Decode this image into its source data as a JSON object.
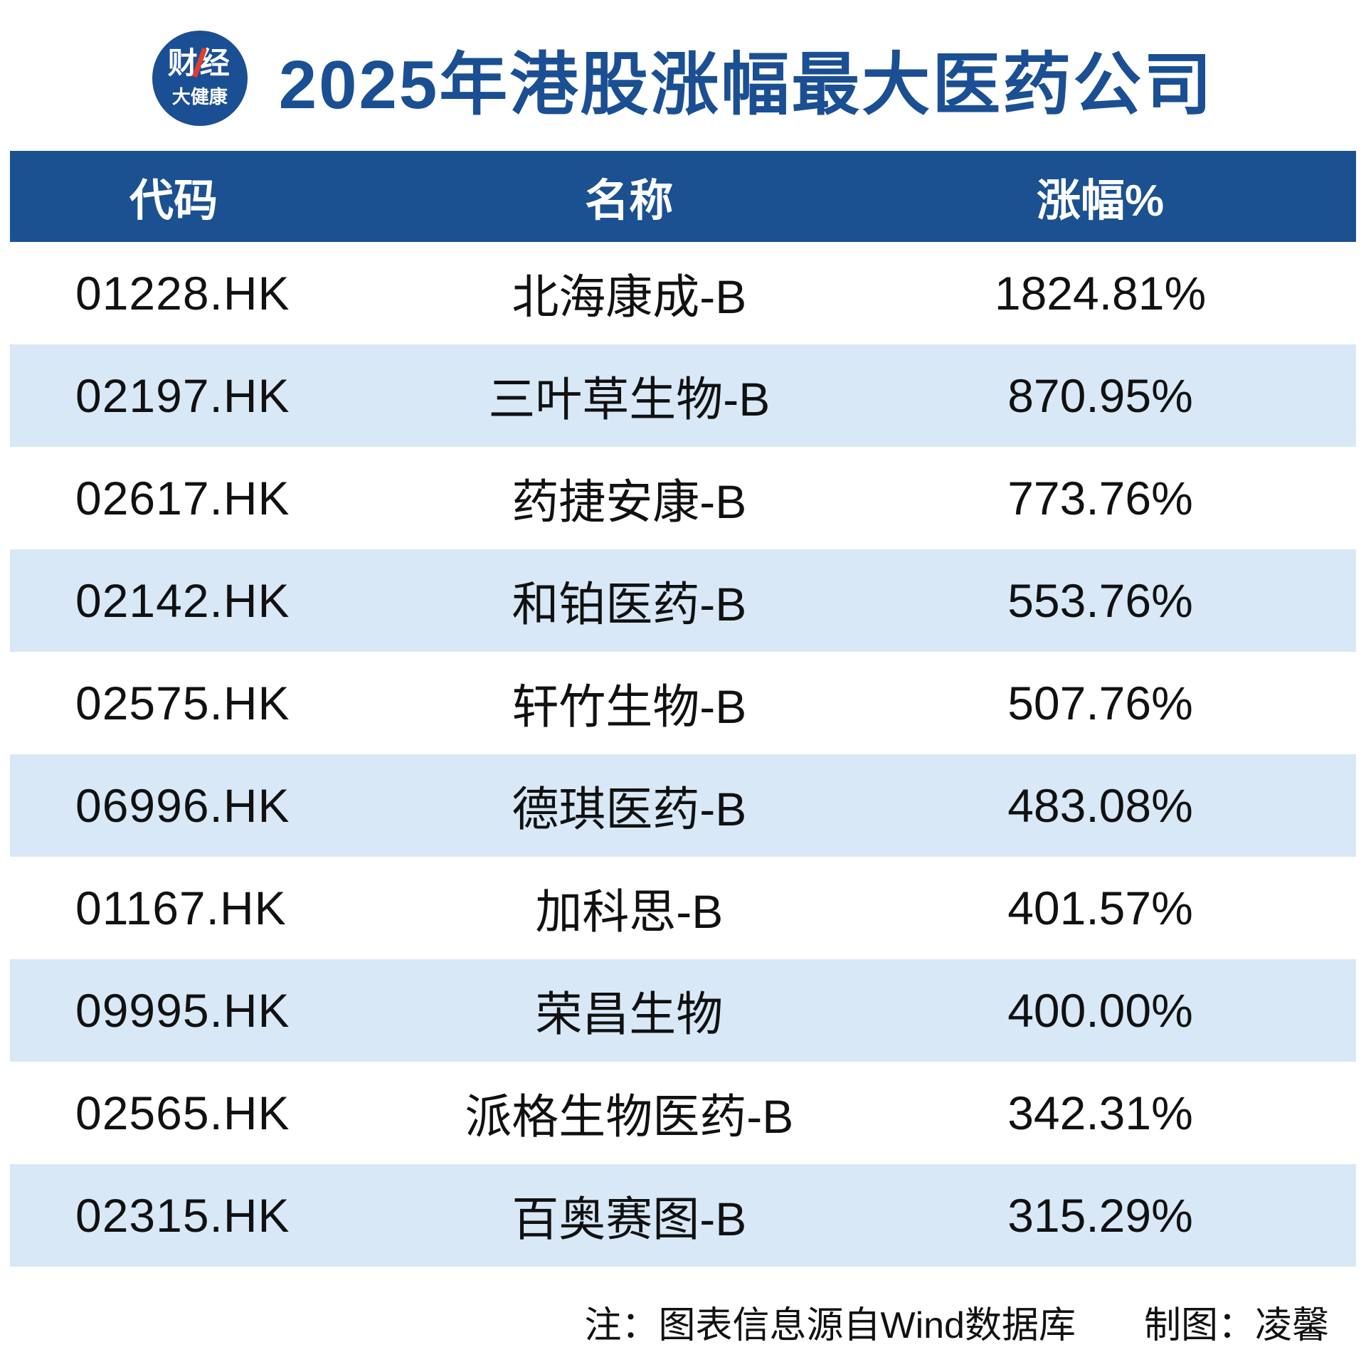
{
  "colors": {
    "primary_blue": "#1b5191",
    "title_blue": "#1b4f93",
    "row_alt_blue": "#d8e8f7",
    "logo_accent_red": "#e23d2e",
    "text": "#111111"
  },
  "logo": {
    "line1": "财经",
    "line2": "大健康"
  },
  "header": {
    "title": "2025年港股涨幅最大医药公司"
  },
  "table": {
    "columns": {
      "code": "代码",
      "name": "名称",
      "change": "涨幅%"
    },
    "rows": [
      {
        "code": "01228.HK",
        "name": "北海康成-B",
        "change": "1824.81%"
      },
      {
        "code": "02197.HK",
        "name": "三叶草生物-B",
        "change": "870.95%"
      },
      {
        "code": "02617.HK",
        "name": "药捷安康-B",
        "change": "773.76%"
      },
      {
        "code": "02142.HK",
        "name": "和铂医药-B",
        "change": "553.76%"
      },
      {
        "code": "02575.HK",
        "name": "轩竹生物-B",
        "change": "507.76%"
      },
      {
        "code": "06996.HK",
        "name": "德琪医药-B",
        "change": "483.08%"
      },
      {
        "code": "01167.HK",
        "name": "加科思-B",
        "change": "401.57%"
      },
      {
        "code": "09995.HK",
        "name": "荣昌生物",
        "change": "400.00%"
      },
      {
        "code": "02565.HK",
        "name": "派格生物医药-B",
        "change": "342.31%"
      },
      {
        "code": "02315.HK",
        "name": "百奥赛图-B",
        "change": "315.29%"
      }
    ]
  },
  "footer": {
    "note": "注：图表信息源自Wind数据库",
    "credit": "制图：凌馨"
  },
  "chart_data": {
    "type": "table",
    "title": "2025年港股涨幅最大医药公司",
    "columns": [
      "代码",
      "名称",
      "涨幅%"
    ],
    "rows": [
      [
        "01228.HK",
        "北海康成-B",
        1824.81
      ],
      [
        "02197.HK",
        "三叶草生物-B",
        870.95
      ],
      [
        "02617.HK",
        "药捷安康-B",
        773.76
      ],
      [
        "02142.HK",
        "和铂医药-B",
        553.76
      ],
      [
        "02575.HK",
        "轩竹生物-B",
        507.76
      ],
      [
        "06996.HK",
        "德琪医药-B",
        483.08
      ],
      [
        "01167.HK",
        "加科思-B",
        401.57
      ],
      [
        "09995.HK",
        "荣昌生物",
        400.0
      ],
      [
        "02565.HK",
        "派格生物医药-B",
        342.31
      ],
      [
        "02315.HK",
        "百奥赛图-B",
        315.29
      ]
    ],
    "unit": "%",
    "source_note": "注：图表信息源自Wind数据库",
    "credit": "制图：凌馨"
  }
}
